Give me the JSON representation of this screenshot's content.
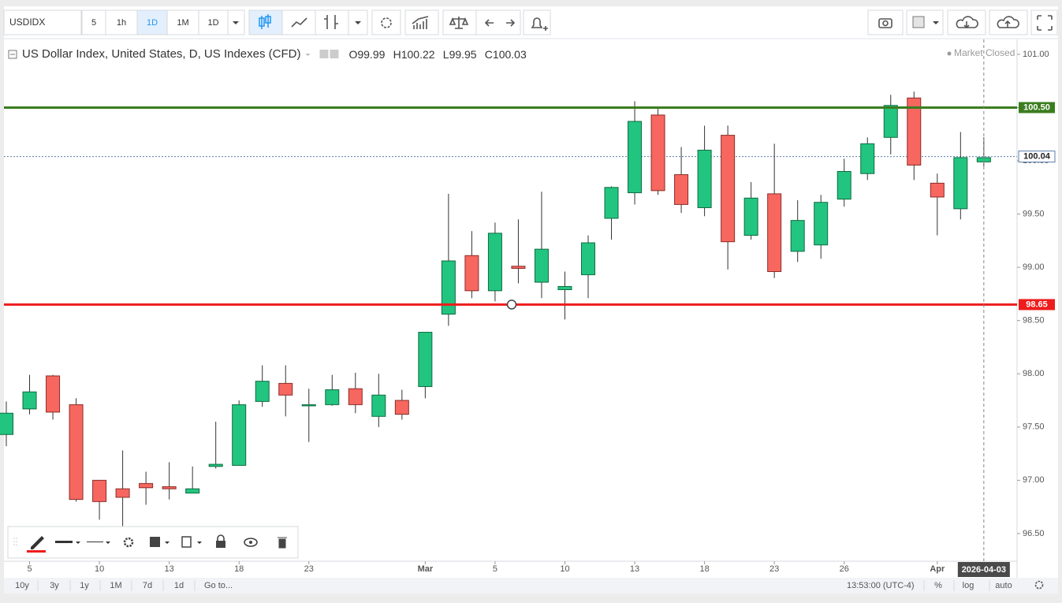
{
  "toolbar": {
    "symbol": "USDIDX",
    "intervals": [
      "5",
      "1h",
      "1D",
      "1M",
      "1D"
    ]
  },
  "chart_data": {
    "type": "candlestick",
    "title": "US Dollar Index, United States, D, US Indexes (CFD)",
    "ohlc_legend": [
      {
        "label": "O",
        "value": 99.99
      },
      {
        "label": "H",
        "value": 100.22
      },
      {
        "label": "L",
        "value": 99.95
      },
      {
        "label": "C",
        "value": 100.03
      }
    ],
    "status": "Market Closed",
    "categories": [
      null,
      "5",
      null,
      null,
      "10",
      null,
      null,
      "13",
      null,
      null,
      "18",
      null,
      null,
      "23",
      null,
      null,
      null,
      null,
      "Mar",
      null,
      null,
      "5",
      null,
      null,
      "10",
      null,
      null,
      "13",
      null,
      null,
      "18",
      null,
      null,
      "23",
      null,
      null,
      "26",
      null,
      null,
      null,
      "Apr",
      null,
      null
    ],
    "open": [
      97.43,
      97.67,
      97.98,
      97.71,
      97.0,
      96.92,
      96.97,
      96.94,
      96.88,
      97.13,
      97.14,
      97.74,
      97.91,
      97.7,
      97.71,
      97.86,
      97.6,
      97.75,
      97.88,
      98.56,
      99.11,
      98.78,
      99.01,
      98.86,
      98.79,
      98.93,
      99.46,
      99.7,
      100.43,
      99.87,
      99.56,
      100.24,
      99.3,
      99.69,
      99.15,
      99.21,
      99.64,
      99.88,
      100.22,
      100.59,
      99.79,
      99.55,
      99.99
    ],
    "high": [
      97.74,
      97.99,
      97.99,
      97.77,
      97.0,
      97.28,
      97.08,
      97.17,
      97.13,
      97.55,
      97.75,
      98.08,
      98.08,
      97.86,
      97.99,
      98.01,
      98.0,
      97.85,
      98.39,
      99.69,
      99.34,
      99.42,
      99.45,
      99.71,
      98.96,
      99.3,
      99.76,
      100.56,
      100.49,
      100.13,
      100.33,
      100.33,
      99.8,
      100.16,
      99.63,
      99.68,
      100.02,
      100.22,
      100.62,
      100.65,
      99.88,
      100.27,
      100.22
    ],
    "low": [
      97.32,
      97.62,
      97.57,
      96.8,
      96.63,
      96.57,
      96.77,
      96.82,
      96.88,
      97.11,
      97.14,
      97.69,
      97.6,
      97.36,
      97.7,
      97.63,
      97.5,
      97.57,
      97.77,
      98.45,
      98.71,
      98.68,
      98.85,
      98.71,
      98.51,
      98.71,
      99.26,
      99.59,
      99.68,
      99.51,
      99.48,
      98.98,
      99.26,
      98.9,
      99.05,
      99.08,
      99.57,
      99.82,
      100.06,
      99.82,
      99.3,
      99.45,
      99.95
    ],
    "close": [
      97.63,
      97.83,
      97.64,
      96.82,
      96.8,
      96.84,
      96.93,
      96.92,
      96.92,
      97.15,
      97.71,
      97.93,
      97.8,
      97.71,
      97.85,
      97.71,
      97.8,
      97.62,
      98.39,
      99.06,
      98.78,
      99.32,
      98.99,
      99.17,
      98.82,
      99.23,
      99.75,
      100.37,
      99.72,
      99.59,
      100.1,
      99.24,
      99.65,
      98.96,
      99.44,
      99.61,
      99.9,
      100.16,
      100.52,
      99.96,
      99.66,
      100.03,
      100.03
    ],
    "up_color": "#22c57f",
    "down_color": "#f7675f",
    "ylim": [
      96.24,
      101.14
    ],
    "yticks": [
      {
        "value": 96.5,
        "label": "96.50"
      },
      {
        "value": 97,
        "label": "97.00"
      },
      {
        "value": 97.5,
        "label": "97.50"
      },
      {
        "value": 98,
        "label": "98.00"
      },
      {
        "value": 98.5,
        "label": "98.50"
      },
      {
        "value": 99,
        "label": "99.00"
      },
      {
        "value": 99.5,
        "label": "99.50"
      },
      {
        "value": 100,
        "label": "100.00"
      },
      {
        "value": 100.5,
        "label": "100.50"
      },
      {
        "value": 101,
        "label": "101.00"
      }
    ],
    "hlines": [
      {
        "value": 100.5,
        "label": "100.50",
        "color": "#3b7d1f"
      },
      {
        "value": 98.65,
        "color": "#ee1c1c"
      }
    ],
    "price_line": {
      "value": 100.04,
      "color": "#5b7ea8"
    },
    "crosshair_label": "2026-04-03"
  },
  "bottom_bar": {
    "ranges": [
      "10y",
      "3y",
      "1y",
      "1M",
      "7d",
      "1d"
    ],
    "goto": "Go to...",
    "time": "13:53:00 (UTC-4)",
    "options": [
      "%",
      "log",
      "auto"
    ]
  }
}
